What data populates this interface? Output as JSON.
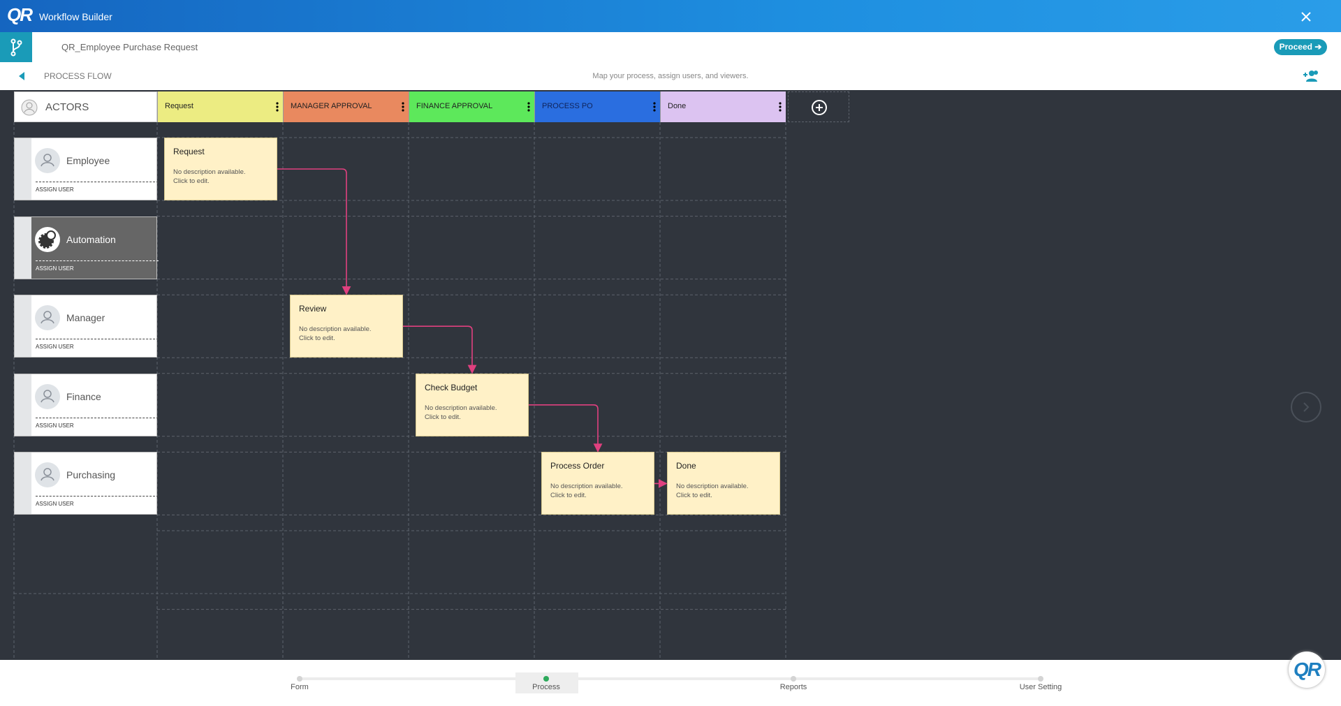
{
  "header": {
    "logo": "QR",
    "title": "Workflow Builder"
  },
  "toolbar": {
    "process_name": "QR_Employee Purchase Request",
    "proceed": "Proceed"
  },
  "subheader": {
    "section": "PROCESS FLOW",
    "hint": "Map your process, assign users, and viewers."
  },
  "board": {
    "actors_label": "ACTORS",
    "columns": [
      {
        "name": "Request",
        "color": "#ecec82"
      },
      {
        "name": "MANAGER APPROVAL",
        "color": "#e9895f"
      },
      {
        "name": "FINANCE APPROVAL",
        "color": "#5de85b"
      },
      {
        "name": "PROCESS PO",
        "color": "#2a6ee0"
      },
      {
        "name": "Done",
        "color": "#dcc3f1"
      }
    ],
    "actors": [
      {
        "name": "Employee",
        "action": "ASSIGN USER"
      },
      {
        "name": "Automation",
        "action": "ASSIGN USER"
      },
      {
        "name": "Manager",
        "action": "ASSIGN USER"
      },
      {
        "name": "Finance",
        "action": "ASSIGN USER"
      },
      {
        "name": "Purchasing",
        "action": "ASSIGN USER"
      }
    ],
    "cards": [
      {
        "title": "Request",
        "description": "No description available. Click to edit."
      },
      {
        "title": "Review",
        "description": "No description available. Click to edit."
      },
      {
        "title": "Check Budget",
        "description": "No description available. Click to edit."
      },
      {
        "title": "Process Order",
        "description": "No description available. Click to edit."
      },
      {
        "title": "Done",
        "description": "No description available. Click to edit."
      }
    ]
  },
  "steps": [
    "Form",
    "Process",
    "Reports",
    "User Setting"
  ]
}
